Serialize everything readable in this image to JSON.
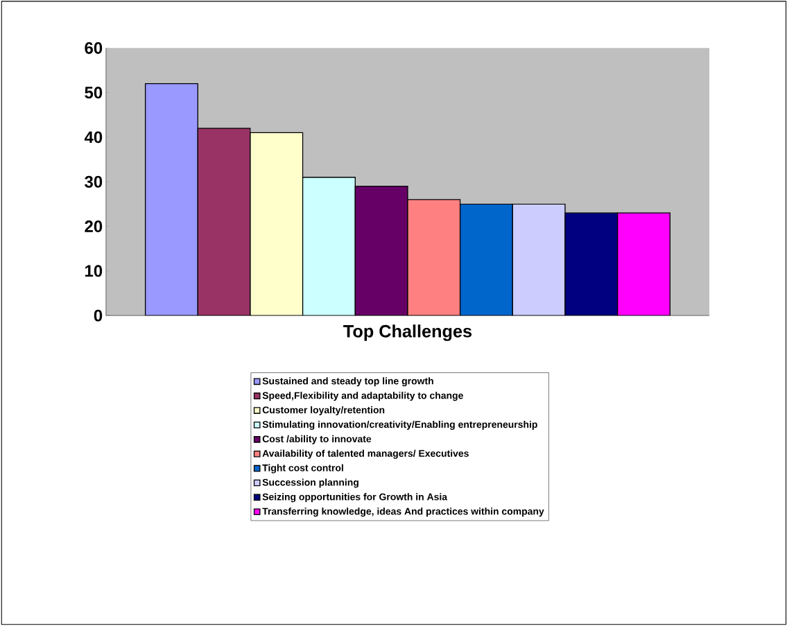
{
  "chart_data": {
    "type": "bar",
    "xlabel": "Top Challenges",
    "categories": [
      null
    ],
    "ylim": [
      0,
      60
    ],
    "yticks": [
      0,
      10,
      20,
      30,
      40,
      50,
      60
    ],
    "legend": "bottom",
    "series": [
      {
        "name": "Sustained and steady top line growth",
        "color": "#9999ff",
        "values": [
          52
        ]
      },
      {
        "name": "Speed,Flexibility and adaptability to change",
        "color": "#993366",
        "values": [
          42
        ]
      },
      {
        "name": "Customer loyalty/retention",
        "color": "#ffffcc",
        "values": [
          41
        ]
      },
      {
        "name": "Stimulating innovation/creativity/Enabling entrepreneurship",
        "color": "#ccffff",
        "values": [
          31
        ]
      },
      {
        "name": "Cost /ability to innovate",
        "color": "#660066",
        "values": [
          29
        ]
      },
      {
        "name": "Availability of talented managers/ Executives",
        "color": "#ff8080",
        "values": [
          26
        ]
      },
      {
        "name": "Tight cost control",
        "color": "#0066cc",
        "values": [
          25
        ]
      },
      {
        "name": "Succession planning",
        "color": "#ccccff",
        "values": [
          25
        ]
      },
      {
        "name": "Seizing opportunities for Growth in Asia",
        "color": "#000080",
        "values": [
          23
        ]
      },
      {
        "name": "Transferring knowledge, ideas And practices within company",
        "color": "#ff00ff",
        "values": [
          23
        ]
      }
    ]
  }
}
